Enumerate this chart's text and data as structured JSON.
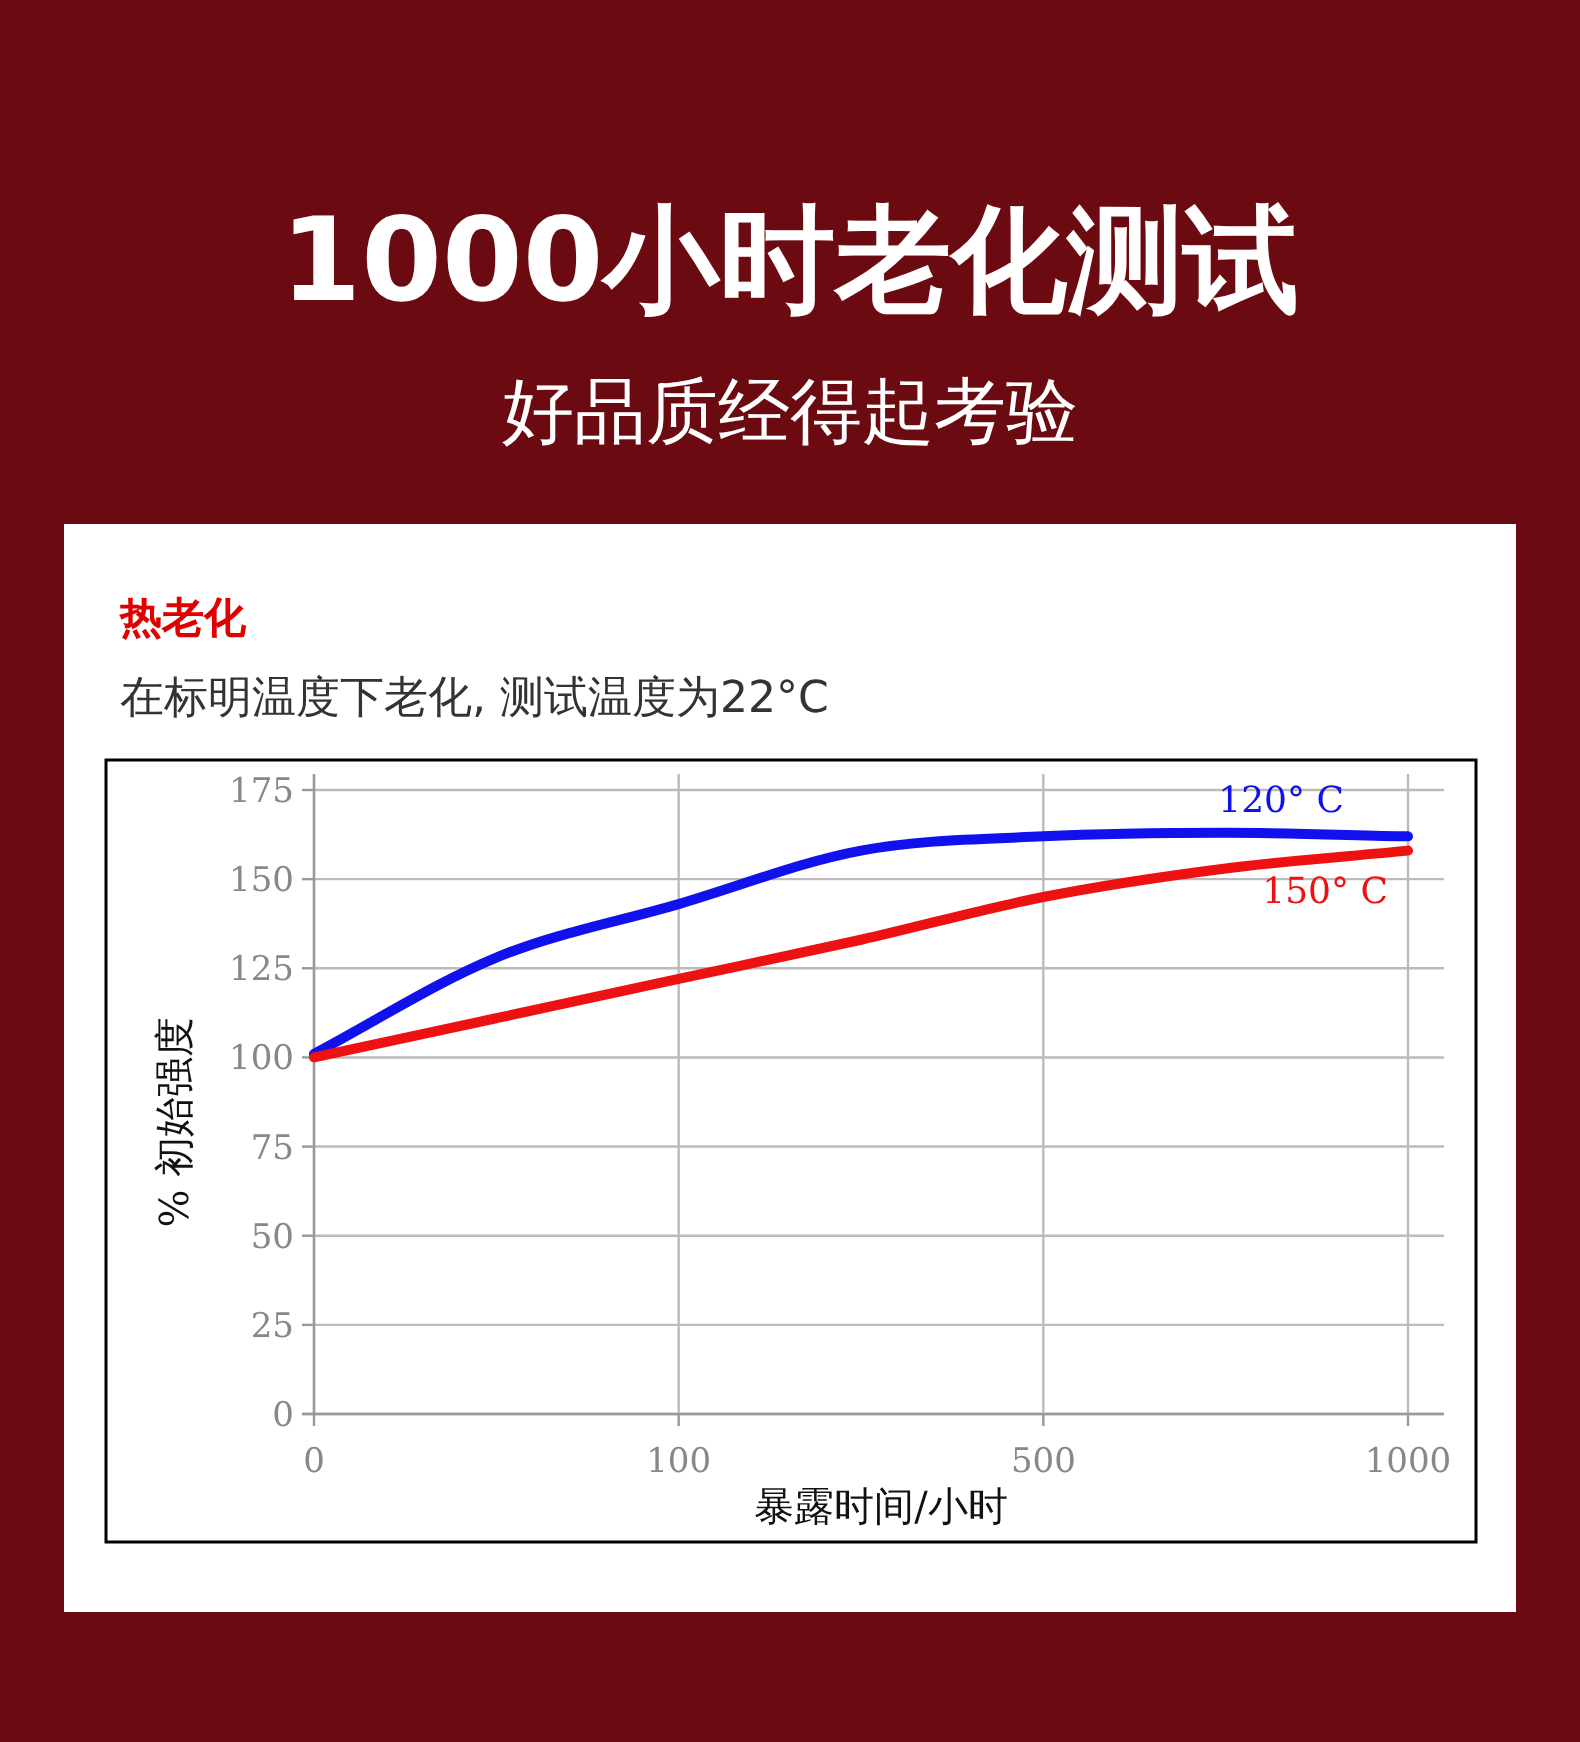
{
  "chart_data": {
    "type": "line",
    "title": "1000小时老化测试",
    "subtitle": "好品质经得起考验",
    "annotations": [
      "热老化",
      "在标明温度下老化, 测试温度为22°C"
    ],
    "xlabel": "暴露时间/小时",
    "ylabel": "% 初始强度",
    "categories": [
      "0",
      null,
      "100",
      null,
      "500",
      null,
      "1000"
    ],
    "series": [
      {
        "name": "120° C",
        "color": "#1111ee",
        "values": [
          101,
          128,
          143,
          158,
          162,
          163,
          162
        ]
      },
      {
        "name": "150° C",
        "color": "#ee1111",
        "values": [
          100,
          111,
          122,
          133,
          145,
          153,
          158
        ]
      }
    ],
    "ylim": [
      0,
      175
    ],
    "yticks": [
      0,
      25,
      50,
      75,
      100,
      125,
      150,
      175
    ],
    "grid": true
  }
}
